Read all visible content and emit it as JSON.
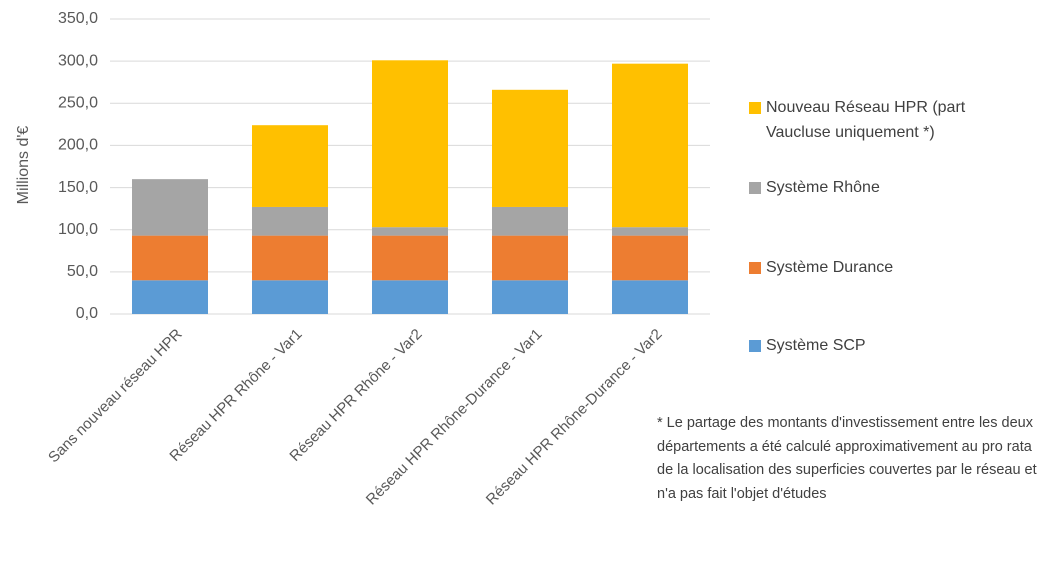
{
  "chart_data": {
    "type": "bar",
    "stacked": true,
    "y_label": "Millions d'€",
    "categories": [
      "Sans nouveau réseau HPR",
      "Réseau HPR Rhône - Var1",
      "Réseau HPR Rhône - Var2",
      "Réseau HPR Rhône-Durance - Var1",
      "Réseau HPR Rhône-Durance - Var2"
    ],
    "series": [
      {
        "name": "Système SCP",
        "color": "#5b9bd5",
        "values": [
          40,
          40,
          40,
          40,
          40
        ]
      },
      {
        "name": "Système Durance",
        "color": "#ed7d31",
        "values": [
          53,
          53,
          53,
          53,
          53
        ]
      },
      {
        "name": "Système Rhône",
        "color": "#a5a5a5",
        "values": [
          67,
          34,
          10,
          34,
          10
        ]
      },
      {
        "name": "Nouveau Réseau HPR (part Vaucluse uniquement *)",
        "color": "#ffc000",
        "values": [
          0,
          97,
          198,
          139,
          194
        ]
      }
    ],
    "ylim": [
      0,
      350
    ],
    "yticks": [
      {
        "value": 0,
        "label": "0,0"
      },
      {
        "value": 50,
        "label": "50,0"
      },
      {
        "value": 100,
        "label": "100,0"
      },
      {
        "value": 150,
        "label": "150,0"
      },
      {
        "value": 200,
        "label": "200,0"
      },
      {
        "value": 250,
        "label": "250,0"
      },
      {
        "value": 300,
        "label": "300,0"
      },
      {
        "value": 350,
        "label": "350,0"
      }
    ],
    "grid": true,
    "legend": "right",
    "annotation": "* Le partage des montants d'investissement entre les deux départements a été calculé approximativement au pro rata de la localisation des superficies couvertes par le réseau et n'a pas fait l'objet d'études"
  }
}
